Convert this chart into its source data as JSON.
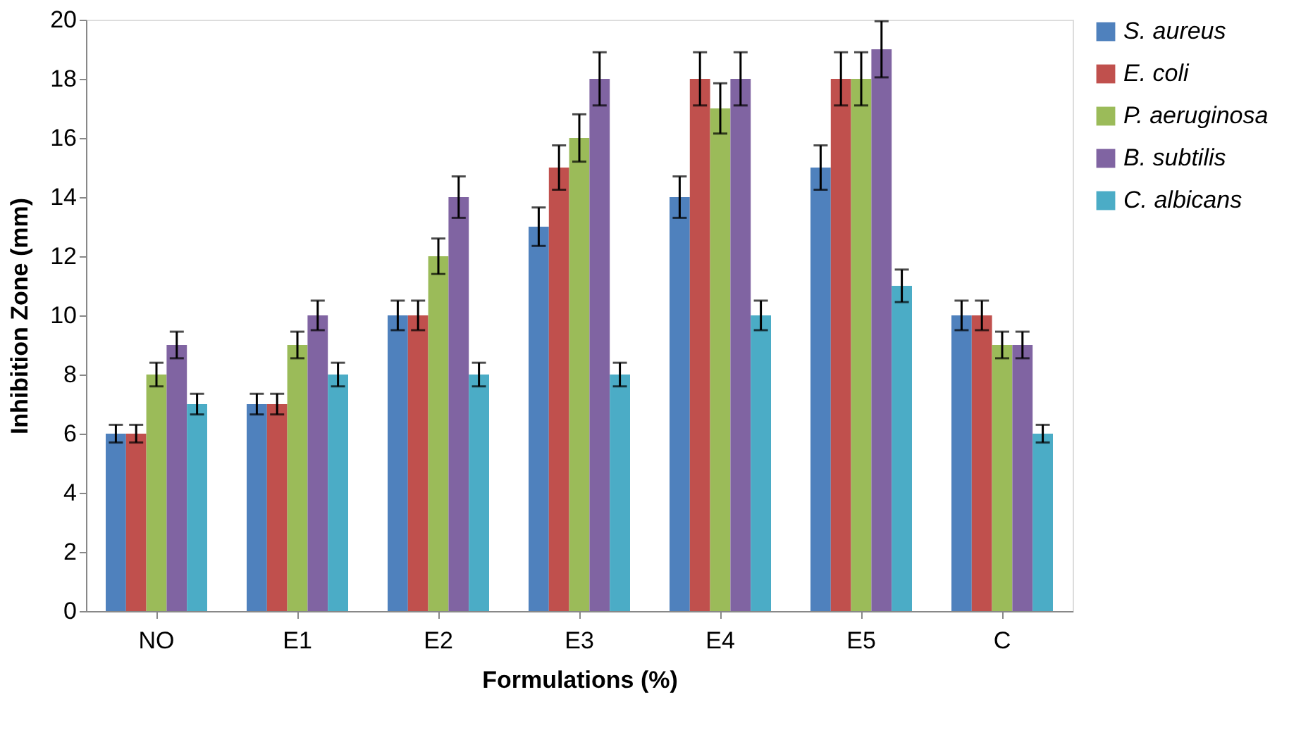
{
  "chart_data": {
    "type": "bar",
    "xlabel": "Formulations (%)",
    "ylabel": "Inhibition Zone (mm)",
    "categories": [
      "NO",
      "E1",
      "E2",
      "E3",
      "E4",
      "E5",
      "C"
    ],
    "series": [
      {
        "name": "S. aureus",
        "color": "#4f81bd",
        "values": [
          6,
          7,
          10,
          13,
          14,
          15,
          10
        ],
        "errors": [
          0.3,
          0.35,
          0.5,
          0.65,
          0.7,
          0.75,
          0.5
        ]
      },
      {
        "name": "E. coli",
        "color": "#c0504d",
        "values": [
          6,
          7,
          10,
          15,
          18,
          18,
          10
        ],
        "errors": [
          0.3,
          0.35,
          0.5,
          0.75,
          0.9,
          0.9,
          0.5
        ]
      },
      {
        "name": "P. aeruginosa",
        "color": "#9bbb59",
        "values": [
          8,
          9,
          12,
          16,
          17,
          18,
          9
        ],
        "errors": [
          0.4,
          0.45,
          0.6,
          0.8,
          0.85,
          0.9,
          0.45
        ]
      },
      {
        "name": "B. subtilis",
        "color": "#8064a2",
        "values": [
          9,
          10,
          14,
          18,
          18,
          19,
          9
        ],
        "errors": [
          0.45,
          0.5,
          0.7,
          0.9,
          0.9,
          0.95,
          0.45
        ]
      },
      {
        "name": "C. albicans",
        "color": "#4bacc6",
        "values": [
          7,
          8,
          8,
          8,
          10,
          11,
          6
        ],
        "errors": [
          0.35,
          0.4,
          0.4,
          0.4,
          0.5,
          0.55,
          0.3
        ]
      }
    ],
    "ylim": [
      0,
      20
    ],
    "yticks": [
      0,
      2,
      4,
      6,
      8,
      10,
      12,
      14,
      16,
      18,
      20
    ],
    "grid": false,
    "legend": "right"
  }
}
